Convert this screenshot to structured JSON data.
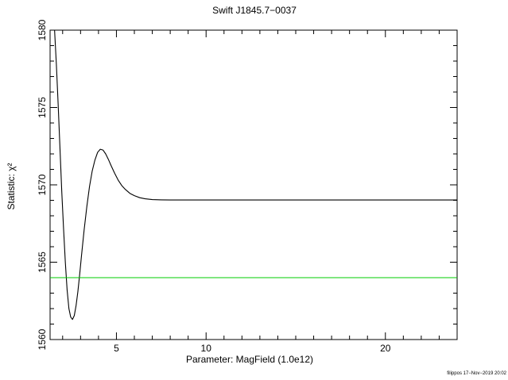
{
  "chart_data": {
    "type": "line",
    "title": "Swift J1845.7−0037",
    "xlabel": "Parameter: MagField (1.0e12)",
    "ylabel": "Statistic: χ²",
    "xlim": [
      1.3,
      24.0
    ],
    "ylim": [
      1560,
      1580
    ],
    "x_ticks": [
      5,
      10,
      20
    ],
    "x_tick_labels": [
      "5",
      "10",
      "20"
    ],
    "y_ticks": [
      1560,
      1565,
      1570,
      1575,
      1580
    ],
    "y_tick_labels": [
      "1560",
      "1565",
      "1570",
      "1575",
      "1580"
    ],
    "grid": false,
    "series": [
      {
        "color": "#000000",
        "x": [
          1.55,
          1.65,
          1.75,
          1.85,
          1.95,
          2.05,
          2.15,
          2.25,
          2.35,
          2.45,
          2.55,
          2.65,
          2.75,
          2.85,
          2.95,
          3.05,
          3.2,
          3.35,
          3.5,
          3.65,
          3.8,
          3.95,
          4.1,
          4.25,
          4.4,
          4.55,
          4.7,
          4.9,
          5.1,
          5.3,
          5.5,
          5.75,
          6.0,
          6.3,
          6.6,
          7.0,
          7.5,
          8.0,
          9.0,
          10.0,
          12.0,
          15.0,
          18.0,
          21.0,
          24.0
        ],
        "y": [
          1580.0,
          1577.8,
          1575.2,
          1572.4,
          1569.6,
          1567.2,
          1565.0,
          1563.2,
          1562.0,
          1561.45,
          1561.3,
          1561.55,
          1562.2,
          1563.1,
          1564.2,
          1565.4,
          1567.1,
          1568.6,
          1569.9,
          1570.9,
          1571.6,
          1572.1,
          1572.3,
          1572.25,
          1572.0,
          1571.65,
          1571.25,
          1570.75,
          1570.3,
          1569.95,
          1569.7,
          1569.45,
          1569.3,
          1569.17,
          1569.1,
          1569.05,
          1569.03,
          1569.02,
          1569.02,
          1569.02,
          1569.02,
          1569.02,
          1569.02,
          1569.02,
          1569.02
        ]
      },
      {
        "color": "#00cc00",
        "x": [
          1.3,
          24.0
        ],
        "y": [
          1564.0,
          1564.0
        ]
      }
    ],
    "annotation": "filippos 17−Nov−2019 20:02"
  }
}
